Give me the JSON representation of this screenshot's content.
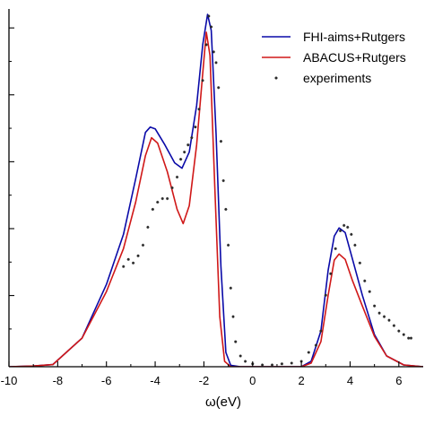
{
  "chart_data": {
    "type": "line",
    "xlabel": "ω(eV)",
    "ylabel": "",
    "xlim": [
      -10,
      7
    ],
    "ylim": [
      0,
      1.0
    ],
    "x_ticks": [
      -10,
      -8,
      -6,
      -4,
      -2,
      0,
      2,
      4,
      6
    ],
    "y_ticks": [
      0.2,
      0.4,
      0.6,
      0.8,
      1.0
    ],
    "y_tick_labels_visible": false,
    "grid": false,
    "legend_position": "top-right",
    "series": [
      {
        "name": "FHI-aims+Rutgers",
        "style": "line",
        "color": "#0a0aa8",
        "points": [
          [
            -10,
            0.0
          ],
          [
            -9,
            0.002
          ],
          [
            -8.2,
            0.006
          ],
          [
            -7,
            0.08
          ],
          [
            -6,
            0.23
          ],
          [
            -5.3,
            0.37
          ],
          [
            -4.8,
            0.525
          ],
          [
            -4.4,
            0.655
          ],
          [
            -4.2,
            0.67
          ],
          [
            -4.0,
            0.665
          ],
          [
            -3.6,
            0.62
          ],
          [
            -3.2,
            0.57
          ],
          [
            -2.9,
            0.555
          ],
          [
            -2.6,
            0.6
          ],
          [
            -2.3,
            0.73
          ],
          [
            -2.05,
            0.9
          ],
          [
            -1.85,
            0.985
          ],
          [
            -1.7,
            0.94
          ],
          [
            -1.5,
            0.65
          ],
          [
            -1.3,
            0.28
          ],
          [
            -1.1,
            0.04
          ],
          [
            -0.9,
            0.004
          ],
          [
            -0.5,
            0.0
          ],
          [
            2.0,
            0.0
          ],
          [
            2.4,
            0.015
          ],
          [
            2.8,
            0.1
          ],
          [
            3.1,
            0.27
          ],
          [
            3.35,
            0.365
          ],
          [
            3.55,
            0.388
          ],
          [
            3.8,
            0.375
          ],
          [
            4.1,
            0.3
          ],
          [
            4.5,
            0.2
          ],
          [
            5.0,
            0.09
          ],
          [
            5.5,
            0.03
          ],
          [
            6.2,
            0.005
          ],
          [
            7,
            0.0
          ]
        ]
      },
      {
        "name": "ABACUS+Rutgers",
        "style": "line",
        "color": "#d01818",
        "points": [
          [
            -10,
            0.0
          ],
          [
            -9,
            0.002
          ],
          [
            -8.2,
            0.006
          ],
          [
            -7,
            0.08
          ],
          [
            -6,
            0.21
          ],
          [
            -5.3,
            0.33
          ],
          [
            -4.8,
            0.46
          ],
          [
            -4.4,
            0.59
          ],
          [
            -4.15,
            0.64
          ],
          [
            -3.9,
            0.625
          ],
          [
            -3.5,
            0.545
          ],
          [
            -3.1,
            0.44
          ],
          [
            -2.85,
            0.4
          ],
          [
            -2.6,
            0.45
          ],
          [
            -2.3,
            0.62
          ],
          [
            -2.05,
            0.82
          ],
          [
            -1.9,
            0.935
          ],
          [
            -1.75,
            0.87
          ],
          [
            -1.55,
            0.5
          ],
          [
            -1.35,
            0.14
          ],
          [
            -1.15,
            0.015
          ],
          [
            -0.9,
            0.0
          ],
          [
            2.0,
            0.0
          ],
          [
            2.4,
            0.01
          ],
          [
            2.8,
            0.07
          ],
          [
            3.1,
            0.2
          ],
          [
            3.35,
            0.298
          ],
          [
            3.55,
            0.315
          ],
          [
            3.8,
            0.3
          ],
          [
            4.1,
            0.24
          ],
          [
            4.5,
            0.17
          ],
          [
            5.0,
            0.085
          ],
          [
            5.5,
            0.03
          ],
          [
            6.2,
            0.005
          ],
          [
            7,
            0.0
          ]
        ]
      },
      {
        "name": "experiments",
        "style": "markers",
        "color": "#2a2a2a",
        "points": [
          [
            -5.3,
            0.28
          ],
          [
            -5.1,
            0.3
          ],
          [
            -4.9,
            0.29
          ],
          [
            -4.7,
            0.31
          ],
          [
            -4.5,
            0.34
          ],
          [
            -4.3,
            0.39
          ],
          [
            -4.1,
            0.44
          ],
          [
            -3.9,
            0.46
          ],
          [
            -3.7,
            0.47
          ],
          [
            -3.5,
            0.47
          ],
          [
            -3.3,
            0.5
          ],
          [
            -3.1,
            0.53
          ],
          [
            -2.95,
            0.58
          ],
          [
            -2.8,
            0.6
          ],
          [
            -2.65,
            0.62
          ],
          [
            -2.5,
            0.64
          ],
          [
            -2.35,
            0.67
          ],
          [
            -2.2,
            0.72
          ],
          [
            -2.05,
            0.8
          ],
          [
            -1.9,
            0.9
          ],
          [
            -1.8,
            0.98
          ],
          [
            -1.7,
            0.95
          ],
          [
            -1.6,
            0.88
          ],
          [
            -1.5,
            0.85
          ],
          [
            -1.4,
            0.78
          ],
          [
            -1.3,
            0.63
          ],
          [
            -1.2,
            0.52
          ],
          [
            -1.1,
            0.44
          ],
          [
            -1.0,
            0.34
          ],
          [
            -0.9,
            0.22
          ],
          [
            -0.8,
            0.14
          ],
          [
            -0.7,
            0.07
          ],
          [
            -0.5,
            0.03
          ],
          [
            -0.3,
            0.015
          ],
          [
            0.0,
            0.008
          ],
          [
            0.4,
            0.005
          ],
          [
            0.8,
            0.005
          ],
          [
            1.2,
            0.008
          ],
          [
            1.6,
            0.01
          ],
          [
            2.0,
            0.015
          ],
          [
            2.3,
            0.04
          ],
          [
            2.6,
            0.06
          ],
          [
            2.8,
            0.1
          ],
          [
            3.0,
            0.2
          ],
          [
            3.2,
            0.26
          ],
          [
            3.4,
            0.33
          ],
          [
            3.6,
            0.38
          ],
          [
            3.75,
            0.395
          ],
          [
            3.9,
            0.39
          ],
          [
            4.05,
            0.37
          ],
          [
            4.2,
            0.34
          ],
          [
            4.4,
            0.29
          ],
          [
            4.6,
            0.24
          ],
          [
            4.8,
            0.21
          ],
          [
            5.0,
            0.17
          ],
          [
            5.2,
            0.15
          ],
          [
            5.4,
            0.14
          ],
          [
            5.6,
            0.13
          ],
          [
            5.8,
            0.115
          ],
          [
            6.0,
            0.1
          ],
          [
            6.2,
            0.09
          ],
          [
            6.4,
            0.08
          ],
          [
            6.5,
            0.08
          ]
        ]
      }
    ]
  }
}
